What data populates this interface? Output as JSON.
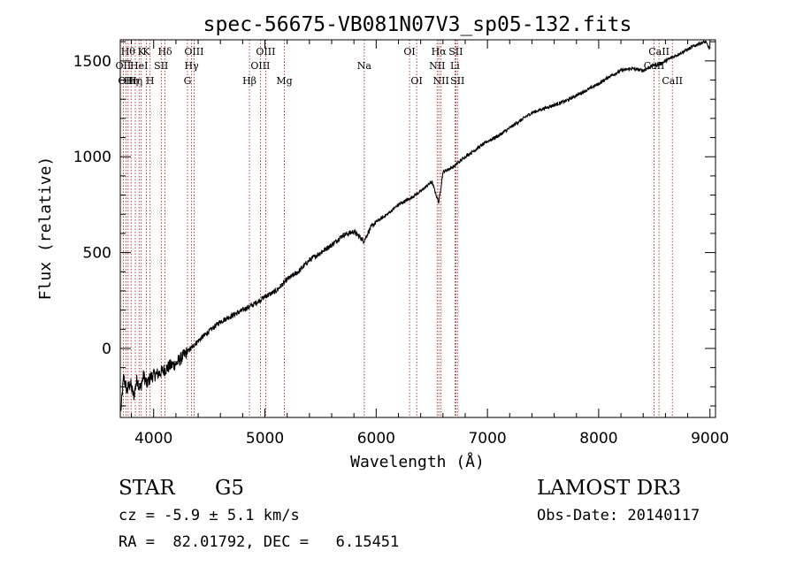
{
  "chart_data": {
    "type": "line",
    "title": "spec-56675-VB081N07V3_sp05-132.fits",
    "xlabel": "Wavelength (Å)",
    "ylabel": "Flux (relative)",
    "xlim": [
      3700,
      9050
    ],
    "ylim": [
      -360,
      1610
    ],
    "xticks": [
      4000,
      5000,
      6000,
      7000,
      8000,
      9000
    ],
    "yticks": [
      0,
      500,
      1000,
      1500
    ],
    "x_minor_step": 200,
    "y_minor_step": 100,
    "line_color": "#000000",
    "marker_color": "#a0140a",
    "spectrum": {
      "x": [
        3705,
        3730,
        3760,
        3790,
        3820,
        3850,
        3880,
        3910,
        3940,
        3970,
        4000,
        4050,
        4100,
        4150,
        4200,
        4250,
        4300,
        4350,
        4400,
        4500,
        4600,
        4700,
        4800,
        4900,
        5000,
        5100,
        5200,
        5300,
        5400,
        5500,
        5600,
        5700,
        5800,
        5890,
        5950,
        6000,
        6100,
        6200,
        6300,
        6400,
        6500,
        6563,
        6600,
        6700,
        6800,
        6900,
        7000,
        7100,
        7200,
        7300,
        7400,
        7500,
        7600,
        7700,
        7800,
        7900,
        8000,
        8100,
        8200,
        8300,
        8400,
        8500,
        8540,
        8600,
        8700,
        8800,
        8900,
        8960,
        9000
      ],
      "y": [
        -330,
        -150,
        -220,
        -180,
        -250,
        -160,
        -210,
        -140,
        -190,
        -150,
        -140,
        -130,
        -110,
        -90,
        -80,
        -50,
        -20,
        10,
        40,
        90,
        140,
        170,
        200,
        230,
        270,
        300,
        360,
        400,
        460,
        500,
        540,
        590,
        610,
        560,
        630,
        660,
        700,
        750,
        780,
        820,
        870,
        760,
        920,
        950,
        1000,
        1040,
        1080,
        1110,
        1150,
        1190,
        1230,
        1250,
        1270,
        1290,
        1320,
        1350,
        1380,
        1420,
        1450,
        1460,
        1450,
        1480,
        1480,
        1500,
        1530,
        1560,
        1590,
        1600,
        1560
      ]
    },
    "lines": [
      {
        "wavelength": 3727,
        "label": "OII",
        "row": 1
      },
      {
        "wavelength": 3750,
        "label": "OII",
        "row": 2
      },
      {
        "wavelength": 3770,
        "label": "Hθ",
        "row": 0
      },
      {
        "wavelength": 3797,
        "label": "Hη",
        "row": 2
      },
      {
        "wavelength": 3835,
        "label": "Hη",
        "row": 2
      },
      {
        "wavelength": 3869,
        "label": "HeI",
        "row": 1
      },
      {
        "wavelength": 3889,
        "label": "K",
        "row": 0
      },
      {
        "wavelength": 3934,
        "label": "K",
        "row": 0
      },
      {
        "wavelength": 3968,
        "label": "H",
        "row": 2
      },
      {
        "wavelength": 4068,
        "label": "SII",
        "row": 1
      },
      {
        "wavelength": 4102,
        "label": "Hδ",
        "row": 0
      },
      {
        "wavelength": 4304,
        "label": "G",
        "row": 2
      },
      {
        "wavelength": 4341,
        "label": "Hγ",
        "row": 1
      },
      {
        "wavelength": 4363,
        "label": "OIII",
        "row": 0
      },
      {
        "wavelength": 4861,
        "label": "Hβ",
        "row": 2
      },
      {
        "wavelength": 4959,
        "label": "OIII",
        "row": 1
      },
      {
        "wavelength": 5007,
        "label": "OIII",
        "row": 0
      },
      {
        "wavelength": 5175,
        "label": "Mg",
        "row": 2
      },
      {
        "wavelength": 5893,
        "label": "Na",
        "row": 1
      },
      {
        "wavelength": 6300,
        "label": "OI",
        "row": 0
      },
      {
        "wavelength": 6364,
        "label": "OI",
        "row": 2
      },
      {
        "wavelength": 6548,
        "label": "NII",
        "row": 1
      },
      {
        "wavelength": 6563,
        "label": "Hα",
        "row": 0
      },
      {
        "wavelength": 6583,
        "label": "NII",
        "row": 2
      },
      {
        "wavelength": 6708,
        "label": "Li",
        "row": 1
      },
      {
        "wavelength": 6716,
        "label": "SII",
        "row": 0
      },
      {
        "wavelength": 6731,
        "label": "SII",
        "row": 2
      },
      {
        "wavelength": 8498,
        "label": "CaII",
        "row": 1
      },
      {
        "wavelength": 8542,
        "label": "CaII",
        "row": 0
      },
      {
        "wavelength": 8662,
        "label": "CaII",
        "row": 2
      }
    ]
  },
  "info": {
    "class": "STAR",
    "subclass": "G5",
    "survey": "LAMOST DR3",
    "cz": "cz = -5.9 ± 5.1 km/s",
    "obs_date": "Obs-Date: 20140117",
    "coords": "RA =  82.01792, DEC =   6.15451"
  }
}
